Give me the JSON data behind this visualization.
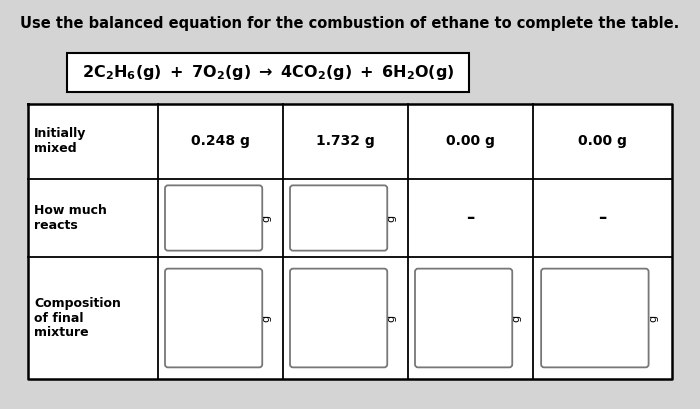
{
  "title": "Use the balanced equation for the combustion of ethane to complete the table.",
  "bg_color": "#d4d4d4",
  "row_labels": [
    "Initially\nmixed",
    "How much\nreacts",
    "Composition\nof final\nmixture"
  ],
  "row0_vals": [
    "0.248 g",
    "1.732 g",
    "0.00 g",
    "0.00 g"
  ],
  "row1_dashes": [
    false,
    false,
    true,
    true
  ],
  "row2_boxes": [
    true,
    true,
    true,
    true
  ],
  "title_fontsize": 10.5,
  "eq_fontsize": 11.5,
  "label_fontsize": 9,
  "val_fontsize": 10,
  "g_fontsize": 8
}
